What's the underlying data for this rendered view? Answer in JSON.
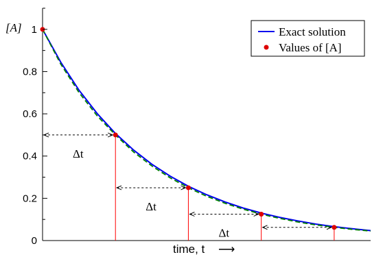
{
  "chart_data": {
    "type": "line",
    "title": "",
    "ylabel": "[A]",
    "xlabel": "time, t",
    "xlabel_arrow": "⟶",
    "ylim": [
      0,
      1.1
    ],
    "xlim": [
      0,
      4.5
    ],
    "yticks": [
      0,
      0.2,
      0.4,
      0.6,
      0.8,
      1.0
    ],
    "ytick_labels": [
      "0",
      "0.2",
      "0.4",
      "0.6",
      "0.8",
      "1"
    ],
    "grid": false,
    "legend_position": "top-right",
    "series": [
      {
        "name": "Exact solution",
        "style": "solid",
        "color": "#0000ee",
        "x": [
          0,
          0.25,
          0.5,
          0.75,
          1.0,
          1.25,
          1.5,
          1.75,
          2.0,
          2.25,
          2.5,
          2.75,
          3.0,
          3.25,
          3.5,
          3.75,
          4.0,
          4.25,
          4.5
        ],
        "y": [
          1.0,
          0.844,
          0.712,
          0.601,
          0.507,
          0.428,
          0.361,
          0.305,
          0.257,
          0.217,
          0.183,
          0.154,
          0.13,
          0.11,
          0.093,
          0.078,
          0.066,
          0.056,
          0.047
        ]
      },
      {
        "style": "dashed",
        "color": "#008000",
        "x": [
          0,
          0.25,
          0.5,
          0.75,
          1.0,
          1.25,
          1.5,
          1.75,
          2.0,
          2.25,
          2.5,
          2.75,
          3.0,
          3.25,
          3.5,
          3.75,
          4.0,
          4.25,
          4.5
        ],
        "y": [
          1.0,
          0.835,
          0.701,
          0.59,
          0.5,
          0.419,
          0.353,
          0.297,
          0.25,
          0.21,
          0.177,
          0.149,
          0.125,
          0.105,
          0.088,
          0.074,
          0.0625,
          0.053,
          0.045
        ]
      },
      {
        "name": "Values of [A]",
        "style": "markers",
        "color": "#dd0000",
        "x": [
          0,
          1,
          2,
          3,
          4
        ],
        "y": [
          1.0,
          0.5,
          0.25,
          0.125,
          0.0625
        ]
      }
    ],
    "annotations": [
      {
        "text": "Δt",
        "from_x": 0,
        "to_x": 1,
        "y": 0.5
      },
      {
        "text": "Δt",
        "from_x": 1,
        "to_x": 2,
        "y": 0.25
      },
      {
        "text": "Δt",
        "from_x": 2,
        "to_x": 3,
        "y": 0.125
      },
      {
        "from_x": 3,
        "to_x": 4,
        "y": 0.0625
      }
    ],
    "colors": {
      "exact": "#0000ee",
      "dashed": "#008000",
      "points": "#dd0000",
      "drop_lines": "#ff0000",
      "axes": "#000000"
    }
  }
}
